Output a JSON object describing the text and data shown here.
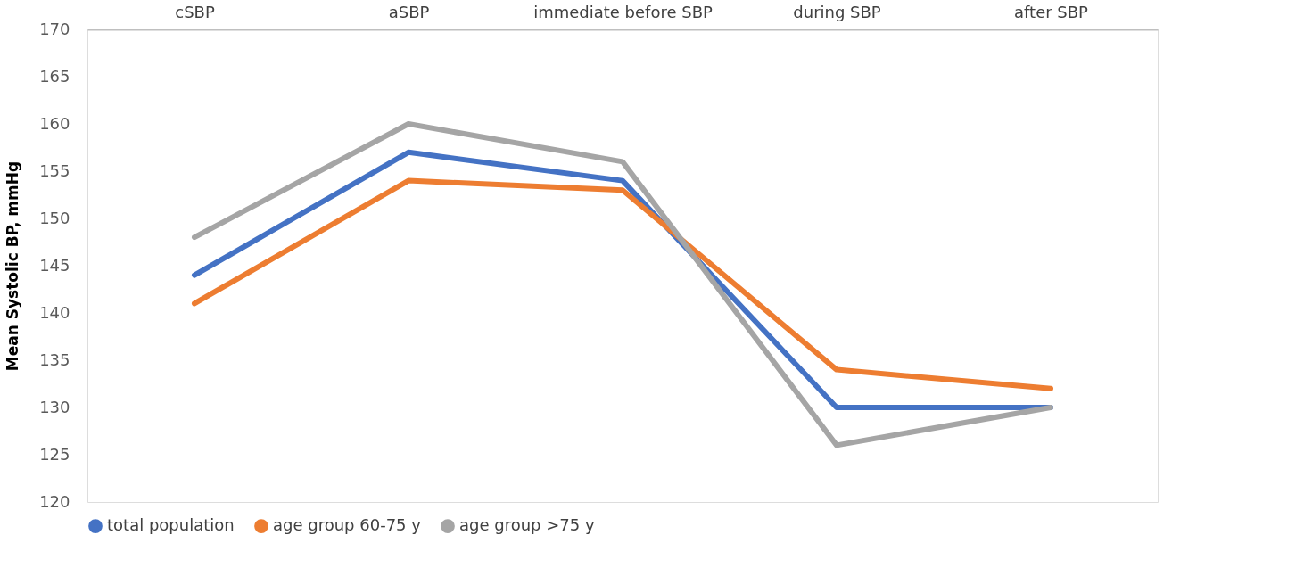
{
  "chart_data": {
    "type": "line",
    "ylabel": "Mean Systolic BP, mmHg",
    "categories": [
      "cSBP",
      "aSBP",
      "immediate before SBP",
      "during SBP",
      "after SBP"
    ],
    "series": [
      {
        "name": "total population",
        "color": "#4472c4",
        "values": [
          144,
          157,
          154,
          130,
          130
        ]
      },
      {
        "name": "age group 60-75 y",
        "color": "#ed7d31",
        "values": [
          141,
          154,
          153,
          134,
          132
        ]
      },
      {
        "name": "age group >75 y",
        "color": "#a5a5a5",
        "values": [
          148,
          160,
          156,
          126,
          130
        ]
      }
    ],
    "ylim": [
      120,
      170
    ],
    "yticks": [
      120,
      125,
      130,
      135,
      140,
      145,
      150,
      155,
      160,
      165,
      170
    ],
    "grid": false,
    "legend": "bottom",
    "marker": "none",
    "line_style": "solid"
  }
}
